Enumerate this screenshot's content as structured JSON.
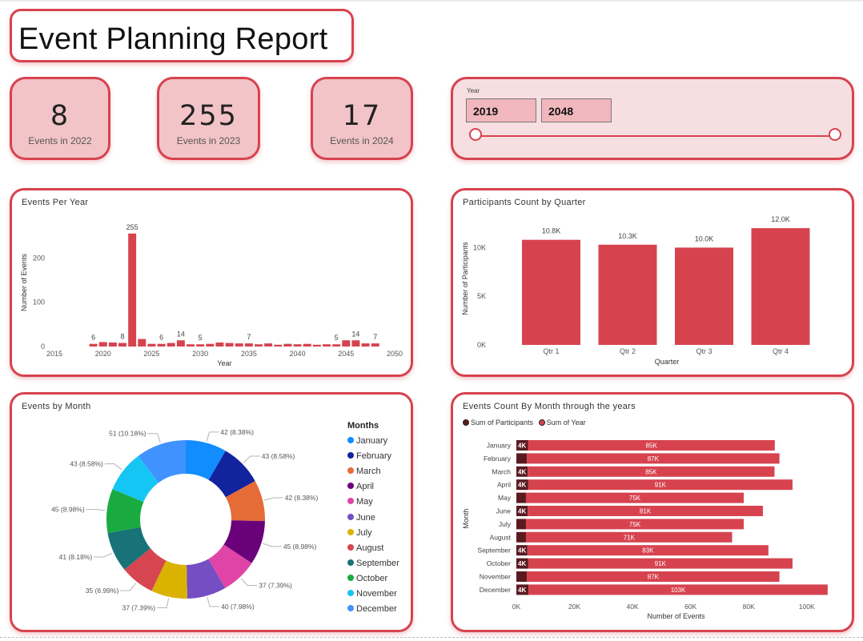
{
  "report": {
    "title": "Event Planning Report"
  },
  "kpis": [
    {
      "value": "8",
      "label": "Events in 2022"
    },
    {
      "value": "255",
      "label": "Events in 2023"
    },
    {
      "value": "17",
      "label": "Events in 2024"
    }
  ],
  "year_slicer": {
    "title": "Year",
    "from": "2019",
    "to": "2048"
  },
  "colors": {
    "accent": "#d6434f",
    "kpi_bg": "#f2c4c8",
    "slicer_bg": "#f7dfe1",
    "participants_bar": "#5a1a20"
  },
  "chart_data": [
    {
      "id": "events_per_year",
      "type": "bar",
      "title": "Events Per Year",
      "xlabel": "Year",
      "ylabel": "Number of Events",
      "x_ticks": [
        "2015",
        "2020",
        "2025",
        "2030",
        "2035",
        "2040",
        "2045",
        "2050"
      ],
      "y_ticks": [
        "0",
        "100",
        "200"
      ],
      "xlim": [
        2015,
        2050
      ],
      "ylim": [
        0,
        280
      ],
      "x": [
        2019,
        2020,
        2021,
        2022,
        2023,
        2024,
        2025,
        2026,
        2027,
        2028,
        2029,
        2030,
        2031,
        2032,
        2033,
        2034,
        2035,
        2036,
        2037,
        2038,
        2039,
        2040,
        2041,
        2042,
        2043,
        2044,
        2045,
        2046,
        2047,
        2048
      ],
      "values": [
        6,
        10,
        9,
        8,
        255,
        17,
        6,
        6,
        8,
        14,
        5,
        5,
        6,
        9,
        8,
        7,
        7,
        5,
        7,
        4,
        6,
        5,
        6,
        4,
        5,
        5,
        14,
        14,
        7,
        7
      ],
      "data_labels": [
        {
          "x": 2019,
          "label": "6"
        },
        {
          "x": 2022,
          "label": "8"
        },
        {
          "x": 2023,
          "label": "255"
        },
        {
          "x": 2026,
          "label": "6"
        },
        {
          "x": 2028,
          "label": "14"
        },
        {
          "x": 2030,
          "label": "5"
        },
        {
          "x": 2035,
          "label": "7"
        },
        {
          "x": 2044,
          "label": "5"
        },
        {
          "x": 2046,
          "label": "14"
        },
        {
          "x": 2048,
          "label": "7"
        }
      ]
    },
    {
      "id": "participants_by_quarter",
      "type": "bar",
      "title": "Participants Count by Quarter",
      "xlabel": "Quarter",
      "ylabel": "Number of Participants",
      "categories": [
        "Qtr 1",
        "Qtr 2",
        "Qtr 3",
        "Qtr 4"
      ],
      "values": [
        10800,
        10300,
        10000,
        12000
      ],
      "value_labels": [
        "10.8K",
        "10.3K",
        "10.0K",
        "12.0K"
      ],
      "y_ticks": [
        "0K",
        "5K",
        "10K"
      ],
      "ylim": [
        0,
        12500
      ]
    },
    {
      "id": "events_by_month",
      "type": "pie",
      "title": "Events by Month",
      "legend_title": "Months",
      "categories": [
        "January",
        "February",
        "March",
        "April",
        "May",
        "June",
        "July",
        "August",
        "September",
        "October",
        "November",
        "December"
      ],
      "values": [
        42,
        43,
        42,
        45,
        37,
        40,
        37,
        35,
        41,
        45,
        43,
        51
      ],
      "slice_labels": [
        "42 (8.38%)",
        "43 (8.58%)",
        "42 (8.38%)",
        "45 (8.98%)",
        "37 (7.39%)",
        "40 (7.98%)",
        "37 (7.39%)",
        "35 (6.99%)",
        "41 (8.18%)",
        "45 (8.98%)",
        "43 (8.58%)",
        "51 (10.18%)"
      ],
      "colors": [
        "#118dff",
        "#12239e",
        "#e66c37",
        "#6b007b",
        "#e044a7",
        "#744ec2",
        "#d9b300",
        "#d64550",
        "#197278",
        "#1aab40",
        "#15c6f4",
        "#4092ff"
      ]
    },
    {
      "id": "events_by_month_years",
      "type": "bar",
      "orientation": "horizontal",
      "stacked": true,
      "title": "Events Count By Month through the years",
      "xlabel": "Number of Events",
      "ylabel": "Month",
      "categories": [
        "January",
        "February",
        "March",
        "April",
        "May",
        "June",
        "July",
        "August",
        "September",
        "October",
        "November",
        "December"
      ],
      "series": [
        {
          "name": "Sum of Participants",
          "values": [
            4000,
            3600,
            3900,
            4100,
            3300,
            3900,
            3300,
            3300,
            3800,
            4100,
            3600,
            4200
          ],
          "labels": [
            "4K",
            "",
            "4K",
            "4K",
            "",
            "4K",
            "",
            "",
            "4K",
            "4K",
            "",
            "4K"
          ],
          "color": "#5a1a20"
        },
        {
          "name": "Sum of Year",
          "values": [
            85000,
            87000,
            85000,
            91000,
            75000,
            81000,
            75000,
            71000,
            83000,
            91000,
            87000,
            103000
          ],
          "labels": [
            "85K",
            "87K",
            "85K",
            "91K",
            "75K",
            "81K",
            "75K",
            "71K",
            "83K",
            "91K",
            "87K",
            "103K"
          ],
          "color": "#d6434f"
        }
      ],
      "x_ticks": [
        "0K",
        "20K",
        "40K",
        "60K",
        "80K",
        "100K"
      ],
      "xlim": [
        0,
        110000
      ]
    }
  ]
}
